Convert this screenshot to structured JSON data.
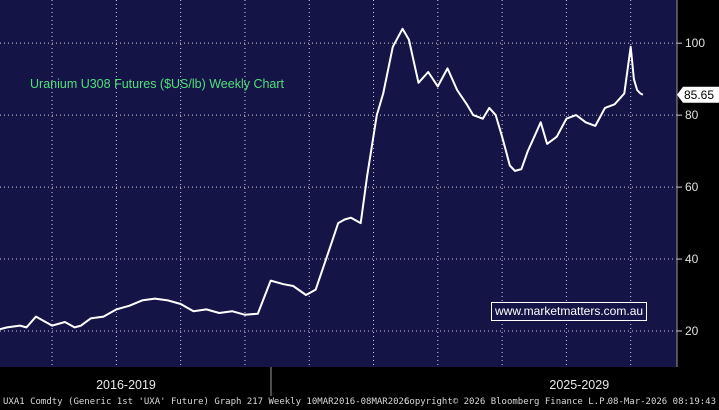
{
  "chart_data": {
    "type": "line",
    "title": "Uranium U308 Futures ($US/lb) Weekly Chart",
    "series": [
      {
        "x": [
          2016.19,
          2016.3,
          2016.5,
          2016.6,
          2016.75,
          2016.9,
          2017.0,
          2017.2,
          2017.35,
          2017.45,
          2017.6,
          2017.8,
          2018.0,
          2018.2,
          2018.4,
          2018.6,
          2018.8,
          2019.0,
          2019.2,
          2019.4,
          2019.6,
          2019.8,
          2020.0,
          2020.2,
          2020.4,
          2020.6,
          2020.75,
          2020.95,
          2021.1,
          2021.3,
          2021.45,
          2021.55,
          2021.65,
          2021.8,
          2021.9,
          2022.05,
          2022.15,
          2022.3,
          2022.45,
          2022.55,
          2022.7,
          2022.85,
          2023.0,
          2023.15,
          2023.3,
          2023.45,
          2023.55,
          2023.7,
          2023.8,
          2023.9,
          2024.0,
          2024.06,
          2024.12,
          2024.2,
          2024.3,
          2024.4,
          2024.5,
          2024.6,
          2024.7,
          2024.85,
          2025.0,
          2025.15,
          2025.3,
          2025.45,
          2025.6,
          2025.75,
          2025.9,
          2026.0,
          2026.05,
          2026.1,
          2026.15,
          2026.19
        ],
        "y": [
          20.5,
          21.0,
          21.5,
          21.0,
          24.0,
          22.5,
          21.5,
          22.5,
          21.0,
          21.5,
          23.5,
          24.0,
          26.0,
          27.0,
          28.5,
          29.0,
          28.5,
          27.5,
          25.5,
          26.0,
          25.0,
          25.5,
          24.5,
          24.8,
          34.0,
          33.0,
          32.5,
          30.0,
          31.5,
          42.0,
          50.0,
          51.0,
          51.5,
          50.0,
          63.0,
          80.0,
          86.0,
          99.0,
          104.0,
          101.0,
          89.0,
          92.0,
          88.0,
          93.0,
          87.0,
          83.0,
          80.0,
          79.0,
          82.0,
          80.0,
          74.0,
          70.0,
          66.0,
          64.5,
          65.0,
          70.0,
          74.0,
          78.0,
          72.0,
          74.0,
          79.0,
          80.0,
          78.0,
          77.0,
          82.0,
          83.0,
          86.0,
          99.0,
          90.0,
          87.0,
          86.0,
          85.65
        ]
      }
    ],
    "xlim": [
      2016.19,
      2026.72
    ],
    "ylim": [
      10,
      112
    ],
    "yticks": [
      20,
      40,
      60,
      80,
      100
    ],
    "ytick_labels": [
      "20",
      "40",
      "60",
      "80",
      "100"
    ],
    "last_value_label": "85.65",
    "last_value": 85.65,
    "period_labels": [
      {
        "label": "2016-2019",
        "x": 2018.15
      },
      {
        "label": "2025-2029",
        "x": 2025.2
      }
    ],
    "grid": true,
    "colors": {
      "background": "#141447",
      "line": "#ffffff",
      "grid": "#ffffff",
      "title": "#4fe07a"
    }
  },
  "title": "Uranium U308 Futures ($US/lb) Weekly Chart",
  "watermark": "www.marketmatters.com.au",
  "footer": {
    "left": "UXA1 Comdty (Generic 1st 'UXA' Future) Graph 217 Weekly 10MAR2016-08MAR2026",
    "mid": "Copyright© 2026 Bloomberg Finance L.P.",
    "right": "08-Mar-2026 08:19:43"
  }
}
